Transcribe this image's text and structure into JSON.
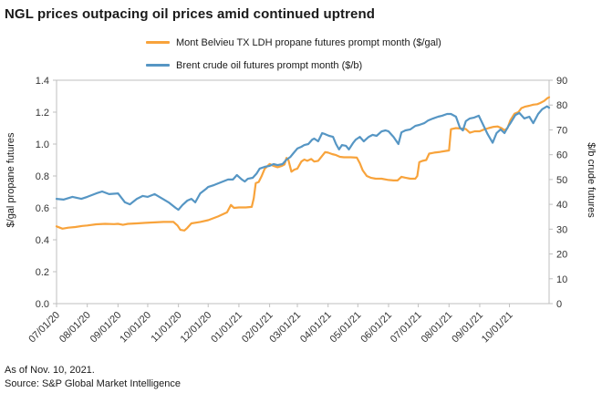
{
  "title": "NGL prices outpacing oil prices amid continued uptrend",
  "footer": {
    "as_of": "As of Nov. 10, 2021.",
    "source": "Source: S&P Global Market Intelligence"
  },
  "colors": {
    "propane": "#F8A33B",
    "brent": "#5696C4",
    "axis_line": "#BFBFBF",
    "text": "#1A1A1A",
    "tick_text": "#333333"
  },
  "legend": [
    {
      "label": "Mont Belvieu TX LDH propane futures prompt month ($/gal)",
      "series": "propane"
    },
    {
      "label": "Brent crude oil futures prompt month ($/b)",
      "series": "brent"
    }
  ],
  "chart_data": {
    "type": "line",
    "title": "NGL prices outpacing oil prices amid continued uptrend",
    "grid": false,
    "legend_position": "top",
    "x_axis": {
      "start_date": "07/01/20",
      "end_date": "11/10/21",
      "total_days": 497,
      "tick_labels": [
        "07/01/20",
        "08/01/20",
        "09/01/20",
        "10/01/20",
        "11/01/20",
        "12/01/20",
        "01/01/21",
        "02/01/21",
        "03/01/21",
        "04/01/21",
        "05/01/21",
        "06/01/21",
        "07/01/21",
        "08/01/21",
        "09/01/21",
        "10/01/21"
      ],
      "tick_days": [
        0,
        31,
        62,
        92,
        123,
        153,
        184,
        215,
        243,
        274,
        304,
        335,
        365,
        396,
        427,
        457
      ]
    },
    "left_axis": {
      "title": "$/gal propane futures",
      "min": 0,
      "max": 1.4,
      "ticks": [
        "0.0",
        "0.2",
        "0.4",
        "0.6",
        "0.8",
        "1.0",
        "1.2",
        "1.4"
      ],
      "tick_values": [
        0,
        0.2,
        0.4,
        0.6,
        0.8,
        1.0,
        1.2,
        1.4
      ]
    },
    "right_axis": {
      "title": "$/b crude futures",
      "min": 0,
      "max": 90,
      "ticks": [
        "0",
        "10",
        "20",
        "30",
        "40",
        "50",
        "60",
        "70",
        "80",
        "90"
      ],
      "tick_values": [
        0,
        10,
        20,
        30,
        40,
        50,
        60,
        70,
        80,
        90
      ]
    },
    "series": [
      {
        "name": "Mont Belvieu TX LDH propane futures prompt month ($/gal)",
        "axis": "left",
        "color_key": "propane",
        "points": [
          [
            0,
            0.484
          ],
          [
            6,
            0.47
          ],
          [
            12,
            0.476
          ],
          [
            19,
            0.48
          ],
          [
            26,
            0.487
          ],
          [
            31,
            0.49
          ],
          [
            40,
            0.497
          ],
          [
            49,
            0.5
          ],
          [
            58,
            0.498
          ],
          [
            62,
            0.5
          ],
          [
            67,
            0.494
          ],
          [
            72,
            0.5
          ],
          [
            81,
            0.503
          ],
          [
            90,
            0.506
          ],
          [
            99,
            0.509
          ],
          [
            108,
            0.512
          ],
          [
            118,
            0.512
          ],
          [
            122,
            0.49
          ],
          [
            125,
            0.462
          ],
          [
            129,
            0.458
          ],
          [
            132,
            0.475
          ],
          [
            136,
            0.503
          ],
          [
            145,
            0.512
          ],
          [
            153,
            0.523
          ],
          [
            163,
            0.546
          ],
          [
            172,
            0.572
          ],
          [
            176,
            0.618
          ],
          [
            179,
            0.6
          ],
          [
            184,
            0.603
          ],
          [
            191,
            0.603
          ],
          [
            197,
            0.606
          ],
          [
            199,
            0.66
          ],
          [
            201,
            0.755
          ],
          [
            204,
            0.762
          ],
          [
            207,
            0.8
          ],
          [
            210,
            0.845
          ],
          [
            215,
            0.875
          ],
          [
            219,
            0.863
          ],
          [
            223,
            0.855
          ],
          [
            227,
            0.862
          ],
          [
            230,
            0.872
          ],
          [
            232,
            0.913
          ],
          [
            234,
            0.9
          ],
          [
            237,
            0.827
          ],
          [
            240,
            0.84
          ],
          [
            243,
            0.846
          ],
          [
            247,
            0.89
          ],
          [
            250,
            0.903
          ],
          [
            253,
            0.895
          ],
          [
            257,
            0.906
          ],
          [
            260,
            0.89
          ],
          [
            264,
            0.895
          ],
          [
            268,
            0.926
          ],
          [
            271,
            0.949
          ],
          [
            274,
            0.946
          ],
          [
            278,
            0.937
          ],
          [
            282,
            0.931
          ],
          [
            286,
            0.92
          ],
          [
            290,
            0.917
          ],
          [
            297,
            0.917
          ],
          [
            303,
            0.915
          ],
          [
            306,
            0.88
          ],
          [
            309,
            0.835
          ],
          [
            313,
            0.8
          ],
          [
            317,
            0.789
          ],
          [
            322,
            0.783
          ],
          [
            328,
            0.783
          ],
          [
            335,
            0.775
          ],
          [
            340,
            0.772
          ],
          [
            344,
            0.772
          ],
          [
            348,
            0.795
          ],
          [
            352,
            0.789
          ],
          [
            357,
            0.783
          ],
          [
            362,
            0.783
          ],
          [
            364,
            0.8
          ],
          [
            366,
            0.886
          ],
          [
            369,
            0.894
          ],
          [
            373,
            0.9
          ],
          [
            376,
            0.94
          ],
          [
            381,
            0.946
          ],
          [
            387,
            0.951
          ],
          [
            393,
            0.957
          ],
          [
            396,
            0.96
          ],
          [
            398,
            1.093
          ],
          [
            403,
            1.1
          ],
          [
            408,
            1.097
          ],
          [
            413,
            1.094
          ],
          [
            417,
            1.071
          ],
          [
            422,
            1.08
          ],
          [
            427,
            1.08
          ],
          [
            431,
            1.09
          ],
          [
            436,
            1.1
          ],
          [
            441,
            1.108
          ],
          [
            445,
            1.11
          ],
          [
            449,
            1.1
          ],
          [
            452,
            1.086
          ],
          [
            455,
            1.1
          ],
          [
            458,
            1.15
          ],
          [
            462,
            1.19
          ],
          [
            466,
            1.2
          ],
          [
            469,
            1.225
          ],
          [
            473,
            1.235
          ],
          [
            477,
            1.24
          ],
          [
            481,
            1.247
          ],
          [
            485,
            1.25
          ],
          [
            488,
            1.257
          ],
          [
            492,
            1.27
          ],
          [
            495,
            1.286
          ],
          [
            497,
            1.293
          ]
        ]
      },
      {
        "name": "Brent crude oil futures prompt month ($/b)",
        "axis": "right",
        "color_key": "brent",
        "points": [
          [
            0,
            42.2
          ],
          [
            7,
            41.9
          ],
          [
            16,
            43
          ],
          [
            25,
            42.2
          ],
          [
            31,
            43
          ],
          [
            40,
            44.4
          ],
          [
            46,
            45.2
          ],
          [
            53,
            44.1
          ],
          [
            62,
            44.4
          ],
          [
            69,
            40.8
          ],
          [
            74,
            40
          ],
          [
            81,
            42.2
          ],
          [
            87,
            43.4
          ],
          [
            92,
            43
          ],
          [
            99,
            44.1
          ],
          [
            107,
            42.2
          ],
          [
            113,
            40.8
          ],
          [
            120,
            38.6
          ],
          [
            123,
            37.8
          ],
          [
            127,
            39.7
          ],
          [
            132,
            41.5
          ],
          [
            136,
            42.2
          ],
          [
            140,
            40.8
          ],
          [
            145,
            44.4
          ],
          [
            151,
            46.3
          ],
          [
            153,
            47
          ],
          [
            159,
            47.8
          ],
          [
            166,
            48.9
          ],
          [
            173,
            50
          ],
          [
            178,
            50
          ],
          [
            182,
            51.8
          ],
          [
            187,
            50
          ],
          [
            190,
            49.2
          ],
          [
            193,
            50.3
          ],
          [
            198,
            50.7
          ],
          [
            202,
            52.5
          ],
          [
            205,
            54.4
          ],
          [
            210,
            55.1
          ],
          [
            215,
            55.5
          ],
          [
            219,
            56.2
          ],
          [
            223,
            55.8
          ],
          [
            228,
            56.2
          ],
          [
            232,
            58
          ],
          [
            236,
            59.1
          ],
          [
            239,
            60.6
          ],
          [
            243,
            62.5
          ],
          [
            247,
            63.2
          ],
          [
            250,
            63.9
          ],
          [
            254,
            64.3
          ],
          [
            258,
            66.1
          ],
          [
            260,
            66.5
          ],
          [
            264,
            65.4
          ],
          [
            268,
            68.7
          ],
          [
            271,
            68.3
          ],
          [
            275,
            67.6
          ],
          [
            279,
            67.2
          ],
          [
            282,
            64.3
          ],
          [
            285,
            62.1
          ],
          [
            288,
            63.9
          ],
          [
            292,
            63.6
          ],
          [
            295,
            62.1
          ],
          [
            299,
            64.6
          ],
          [
            302,
            66.1
          ],
          [
            306,
            67.2
          ],
          [
            310,
            65.4
          ],
          [
            315,
            67.2
          ],
          [
            319,
            68
          ],
          [
            323,
            67.6
          ],
          [
            328,
            69.4
          ],
          [
            332,
            69.8
          ],
          [
            335,
            69.4
          ],
          [
            340,
            67.2
          ],
          [
            345,
            64.3
          ],
          [
            348,
            69
          ],
          [
            352,
            69.8
          ],
          [
            357,
            70.2
          ],
          [
            362,
            71.6
          ],
          [
            366,
            72
          ],
          [
            371,
            72.7
          ],
          [
            375,
            73.8
          ],
          [
            380,
            74.6
          ],
          [
            385,
            75.3
          ],
          [
            389,
            75.7
          ],
          [
            394,
            76.4
          ],
          [
            398,
            76.4
          ],
          [
            403,
            75.3
          ],
          [
            407,
            70.9
          ],
          [
            410,
            69.8
          ],
          [
            413,
            73.5
          ],
          [
            417,
            74.6
          ],
          [
            421,
            74.9
          ],
          [
            426,
            75.7
          ],
          [
            431,
            71.6
          ],
          [
            435,
            68.3
          ],
          [
            440,
            64.8
          ],
          [
            444,
            68.7
          ],
          [
            448,
            70.2
          ],
          [
            452,
            68.7
          ],
          [
            456,
            71.6
          ],
          [
            458,
            72.7
          ],
          [
            463,
            76
          ],
          [
            467,
            76.8
          ],
          [
            472,
            74.6
          ],
          [
            477,
            75.3
          ],
          [
            481,
            72.7
          ],
          [
            486,
            76.4
          ],
          [
            490,
            78.3
          ],
          [
            495,
            79.5
          ],
          [
            497,
            78.9
          ]
        ]
      }
    ]
  }
}
